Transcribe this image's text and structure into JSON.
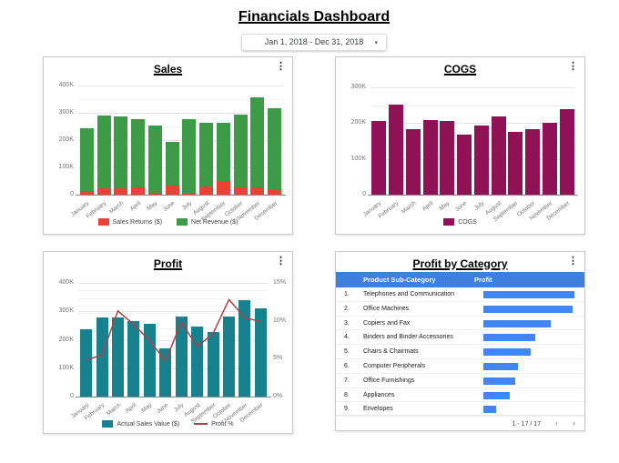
{
  "page_title": "Financials Dashboard",
  "date_filter": {
    "value": "Jan 1, 2018 - Dec 31, 2018"
  },
  "icons": {
    "more_options": "⋮",
    "dropdown_arrow": "▾",
    "prev_page": "‹",
    "next_page": "›"
  },
  "chart_data": [
    {
      "id": "sales",
      "type": "bar",
      "stacked": true,
      "title": "Sales",
      "categories": [
        "January",
        "February",
        "March",
        "April",
        "May",
        "June",
        "July",
        "August",
        "September",
        "October",
        "November",
        "December"
      ],
      "series": [
        {
          "name": "Sales Returns ($)",
          "color": "#e84335",
          "values": [
            15000,
            25000,
            22000,
            26000,
            7000,
            32000,
            8000,
            29000,
            50000,
            26000,
            27000,
            19000
          ]
        },
        {
          "name": "Net Revenue ($)",
          "color": "#3d9a47",
          "values": [
            230000,
            265000,
            264000,
            251000,
            248000,
            160000,
            269000,
            236000,
            215000,
            269000,
            330000,
            297000
          ]
        }
      ],
      "y_axis": {
        "min": 0,
        "max": 410000,
        "ticks": [
          {
            "value": 0,
            "label": "0"
          },
          {
            "value": 100000,
            "label": "100K"
          },
          {
            "value": 200000,
            "label": "200K"
          },
          {
            "value": 300000,
            "label": "300K"
          },
          {
            "value": 400000,
            "label": "400K"
          }
        ]
      },
      "grid": true,
      "legend_position": "bottom"
    },
    {
      "id": "cogs",
      "type": "bar",
      "stacked": false,
      "title": "COGS",
      "categories": [
        "January",
        "February",
        "March",
        "April",
        "May",
        "June",
        "July",
        "August",
        "September",
        "October",
        "November",
        "December"
      ],
      "series": [
        {
          "name": "COGS",
          "color": "#8f1156",
          "values": [
            205000,
            252000,
            182000,
            208000,
            205000,
            167000,
            193000,
            220000,
            176000,
            184000,
            202000,
            238000
          ]
        }
      ],
      "y_axis": {
        "min": 0,
        "max": 313000,
        "ticks": [
          {
            "value": 0,
            "label": "0"
          },
          {
            "value": 100000,
            "label": "100K"
          },
          {
            "value": 200000,
            "label": "200K"
          },
          {
            "value": 300000,
            "label": "300K"
          }
        ]
      },
      "grid": true,
      "legend_position": "bottom"
    },
    {
      "id": "profit",
      "type": "combo",
      "title": "Profit",
      "categories": [
        "January",
        "February",
        "March",
        "April",
        "May",
        "June",
        "July",
        "August",
        "September",
        "October",
        "November",
        "December"
      ],
      "series": [
        {
          "name": "Actual Sales Value ($)",
          "chart": "bar",
          "axis": "left",
          "color": "#17828e",
          "values": [
            238000,
            280000,
            277000,
            266000,
            255000,
            170000,
            281000,
            248000,
            228000,
            281000,
            340000,
            309000
          ]
        },
        {
          "name": "Profit %",
          "chart": "line",
          "axis": "right",
          "color": "#ad4046",
          "values": [
            4.8,
            5.5,
            11.3,
            9.5,
            7.4,
            4.7,
            9.8,
            6.6,
            8.3,
            12.8,
            10.4,
            9.9
          ]
        }
      ],
      "left_y_axis": {
        "min": 0,
        "max": 416000,
        "ticks": [
          {
            "value": 0,
            "label": "0"
          },
          {
            "value": 100000,
            "label": "100K"
          },
          {
            "value": 200000,
            "label": "200K"
          },
          {
            "value": 300000,
            "label": "300K"
          },
          {
            "value": 400000,
            "label": "400K"
          }
        ]
      },
      "right_y_axis": {
        "min": 0,
        "max": 15.6,
        "ticks": [
          {
            "value": 0,
            "label": "0%"
          },
          {
            "value": 5,
            "label": "5%"
          },
          {
            "value": 10,
            "label": "10%"
          },
          {
            "value": 15,
            "label": "15%"
          }
        ]
      },
      "grid": true,
      "legend_position": "bottom"
    },
    {
      "id": "profit_by_category",
      "type": "table",
      "title": "Profit by Category",
      "columns": [
        "Product Sub-Category",
        "Profit"
      ],
      "header_color": "#3f7fe0",
      "bar_color": "#4285f4",
      "rows": [
        {
          "rank": "1.",
          "name": "Telephones and Communication",
          "bar_pct": 100
        },
        {
          "rank": "2.",
          "name": "Office Machines",
          "bar_pct": 98
        },
        {
          "rank": "3.",
          "name": "Copiers and Fax",
          "bar_pct": 74
        },
        {
          "rank": "4.",
          "name": "Binders and Binder Accessories",
          "bar_pct": 57
        },
        {
          "rank": "5.",
          "name": "Chairs & Chairmats",
          "bar_pct": 52
        },
        {
          "rank": "6.",
          "name": "Computer Peripherals",
          "bar_pct": 38
        },
        {
          "rank": "7.",
          "name": "Office Furnishings",
          "bar_pct": 35
        },
        {
          "rank": "8.",
          "name": "Appliances",
          "bar_pct": 29
        },
        {
          "rank": "9.",
          "name": "Envelopes",
          "bar_pct": 14
        }
      ],
      "pagination": {
        "label": "1 - 17 / 17"
      }
    }
  ]
}
